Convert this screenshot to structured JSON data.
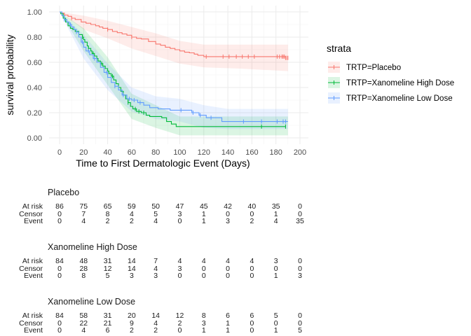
{
  "chart_data": {
    "type": "line",
    "subtype": "kaplan-meier survival curve",
    "xlabel": "Time to First Dermatologic Event (Days)",
    "ylabel": "survival probability",
    "xlim": [
      0,
      200
    ],
    "ylim": [
      0,
      1
    ],
    "xticks": [
      0,
      20,
      40,
      60,
      80,
      100,
      120,
      140,
      160,
      180,
      200
    ],
    "yticks": [
      0.0,
      0.2,
      0.4,
      0.6,
      0.8,
      1.0
    ],
    "ytick_labels": [
      "0.00",
      "0.20",
      "0.40",
      "0.60",
      "0.80",
      "1.00"
    ],
    "grid": true,
    "legend": {
      "title": "strata",
      "position": "right"
    },
    "series": [
      {
        "name": "TRTP=Placebo",
        "color": "#F8766D",
        "band_color": "#F8766D",
        "steps": [
          [
            0,
            1.0
          ],
          [
            2,
            0.99
          ],
          [
            4,
            0.975
          ],
          [
            7,
            0.965
          ],
          [
            10,
            0.95
          ],
          [
            13,
            0.94
          ],
          [
            18,
            0.92
          ],
          [
            22,
            0.91
          ],
          [
            26,
            0.9
          ],
          [
            30,
            0.89
          ],
          [
            33,
            0.88
          ],
          [
            36,
            0.87
          ],
          [
            40,
            0.86
          ],
          [
            44,
            0.845
          ],
          [
            48,
            0.835
          ],
          [
            52,
            0.825
          ],
          [
            56,
            0.815
          ],
          [
            60,
            0.8
          ],
          [
            64,
            0.79
          ],
          [
            68,
            0.785
          ],
          [
            74,
            0.765
          ],
          [
            80,
            0.745
          ],
          [
            84,
            0.735
          ],
          [
            88,
            0.72
          ],
          [
            92,
            0.71
          ],
          [
            96,
            0.7
          ],
          [
            100,
            0.69
          ],
          [
            104,
            0.68
          ],
          [
            108,
            0.675
          ],
          [
            112,
            0.665
          ],
          [
            115,
            0.655
          ],
          [
            120,
            0.645
          ],
          [
            188,
            0.635
          ]
        ],
        "band": [
          [
            0,
            1.0,
            1.0
          ],
          [
            20,
            0.86,
            0.97
          ],
          [
            40,
            0.79,
            0.93
          ],
          [
            60,
            0.71,
            0.88
          ],
          [
            80,
            0.65,
            0.83
          ],
          [
            100,
            0.59,
            0.77
          ],
          [
            120,
            0.56,
            0.74
          ],
          [
            150,
            0.55,
            0.74
          ],
          [
            190,
            0.53,
            0.74
          ]
        ],
        "censor_times": [
          10,
          40,
          60,
          122,
          136,
          141,
          147,
          152,
          157,
          162,
          181,
          183,
          185,
          186,
          187,
          188,
          189,
          190
        ]
      },
      {
        "name": "TRTP=Xanomeline High Dose",
        "color": "#00BA38",
        "band_color": "#00BA38",
        "steps": [
          [
            0,
            1.0
          ],
          [
            1,
            0.985
          ],
          [
            3,
            0.95
          ],
          [
            5,
            0.92
          ],
          [
            7,
            0.89
          ],
          [
            9,
            0.87
          ],
          [
            11,
            0.86
          ],
          [
            13,
            0.845
          ],
          [
            16,
            0.82
          ],
          [
            19,
            0.8
          ],
          [
            20,
            0.78
          ],
          [
            21,
            0.76
          ],
          [
            23,
            0.73
          ],
          [
            24,
            0.71
          ],
          [
            26,
            0.69
          ],
          [
            27,
            0.67
          ],
          [
            29,
            0.65
          ],
          [
            31,
            0.63
          ],
          [
            32,
            0.61
          ],
          [
            34,
            0.59
          ],
          [
            36,
            0.57
          ],
          [
            38,
            0.55
          ],
          [
            40,
            0.53
          ],
          [
            41,
            0.51
          ],
          [
            43,
            0.49
          ],
          [
            45,
            0.46
          ],
          [
            47,
            0.43
          ],
          [
            49,
            0.4
          ],
          [
            51,
            0.37
          ],
          [
            53,
            0.34
          ],
          [
            55,
            0.31
          ],
          [
            57,
            0.28
          ],
          [
            59,
            0.25
          ],
          [
            61,
            0.23
          ],
          [
            64,
            0.21
          ],
          [
            68,
            0.2
          ],
          [
            72,
            0.18
          ],
          [
            75,
            0.17
          ],
          [
            85,
            0.16
          ],
          [
            89,
            0.13
          ],
          [
            93,
            0.11
          ],
          [
            97,
            0.09
          ],
          [
            188,
            0.09
          ]
        ],
        "band": [
          [
            0,
            1.0,
            1.0
          ],
          [
            20,
            0.69,
            0.87
          ],
          [
            40,
            0.42,
            0.64
          ],
          [
            60,
            0.15,
            0.35
          ],
          [
            80,
            0.08,
            0.26
          ],
          [
            100,
            0.02,
            0.17
          ],
          [
            140,
            0.02,
            0.17
          ],
          [
            190,
            0.02,
            0.17
          ]
        ],
        "censor_times": [
          4,
          14,
          19,
          24,
          28,
          35,
          44,
          57,
          63,
          66,
          70,
          168,
          188
        ]
      },
      {
        "name": "TRTP=Xanomeline Low Dose",
        "color": "#619CFF",
        "band_color": "#619CFF",
        "steps": [
          [
            0,
            1.0
          ],
          [
            2,
            0.97
          ],
          [
            4,
            0.94
          ],
          [
            6,
            0.92
          ],
          [
            8,
            0.9
          ],
          [
            10,
            0.88
          ],
          [
            12,
            0.86
          ],
          [
            14,
            0.84
          ],
          [
            16,
            0.8
          ],
          [
            18,
            0.76
          ],
          [
            20,
            0.72
          ],
          [
            22,
            0.69
          ],
          [
            25,
            0.66
          ],
          [
            28,
            0.63
          ],
          [
            31,
            0.6
          ],
          [
            34,
            0.56
          ],
          [
            37,
            0.52
          ],
          [
            40,
            0.48
          ],
          [
            43,
            0.44
          ],
          [
            46,
            0.41
          ],
          [
            49,
            0.38
          ],
          [
            52,
            0.34
          ],
          [
            56,
            0.31
          ],
          [
            60,
            0.3
          ],
          [
            65,
            0.28
          ],
          [
            70,
            0.26
          ],
          [
            75,
            0.24
          ],
          [
            82,
            0.23
          ],
          [
            92,
            0.22
          ],
          [
            110,
            0.2
          ],
          [
            116,
            0.18
          ],
          [
            122,
            0.16
          ],
          [
            135,
            0.13
          ],
          [
            190,
            0.13
          ]
        ],
        "band": [
          [
            0,
            1.0,
            1.0
          ],
          [
            20,
            0.63,
            0.82
          ],
          [
            40,
            0.38,
            0.59
          ],
          [
            60,
            0.21,
            0.4
          ],
          [
            80,
            0.15,
            0.33
          ],
          [
            100,
            0.13,
            0.31
          ],
          [
            120,
            0.08,
            0.26
          ],
          [
            140,
            0.07,
            0.23
          ],
          [
            190,
            0.07,
            0.23
          ]
        ],
        "censor_times": [
          4,
          9,
          14,
          19,
          24,
          29,
          39,
          46,
          53,
          58,
          62,
          67,
          101,
          111,
          117,
          126,
          153,
          168,
          181,
          186,
          188
        ]
      }
    ]
  },
  "risk_table": {
    "row_labels": [
      "At risk",
      "Censor",
      "Event"
    ],
    "times": [
      0,
      20,
      40,
      60,
      80,
      100,
      120,
      140,
      160,
      180,
      200
    ],
    "groups": [
      {
        "name": "Placebo",
        "at_risk": [
          "86",
          "75",
          "65",
          "59",
          "50",
          "47",
          "45",
          "42",
          "40",
          "35",
          "0"
        ],
        "censor": [
          "0",
          "7",
          "8",
          "4",
          "5",
          "3",
          "1",
          "0",
          "0",
          "1",
          "0"
        ],
        "event": [
          "0",
          "4",
          "2",
          "2",
          "4",
          "0",
          "1",
          "3",
          "2",
          "4",
          "35"
        ]
      },
      {
        "name": "Xanomeline High Dose",
        "at_risk": [
          "84",
          "48",
          "31",
          "14",
          "7",
          "4",
          "4",
          "4",
          "4",
          "3",
          "0"
        ],
        "censor": [
          "0",
          "28",
          "12",
          "14",
          "4",
          "3",
          "0",
          "0",
          "0",
          "0",
          "0"
        ],
        "event": [
          "0",
          "8",
          "5",
          "3",
          "3",
          "0",
          "0",
          "0",
          "0",
          "1",
          "3"
        ]
      },
      {
        "name": "Xanomeline Low Dose",
        "at_risk": [
          "84",
          "58",
          "31",
          "20",
          "14",
          "12",
          "8",
          "6",
          "6",
          "5",
          "0"
        ],
        "censor": [
          "0",
          "22",
          "21",
          "9",
          "4",
          "2",
          "3",
          "1",
          "0",
          "0",
          "0"
        ],
        "event": [
          "0",
          "4",
          "6",
          "2",
          "2",
          "0",
          "1",
          "1",
          "0",
          "1",
          "5"
        ]
      }
    ]
  }
}
